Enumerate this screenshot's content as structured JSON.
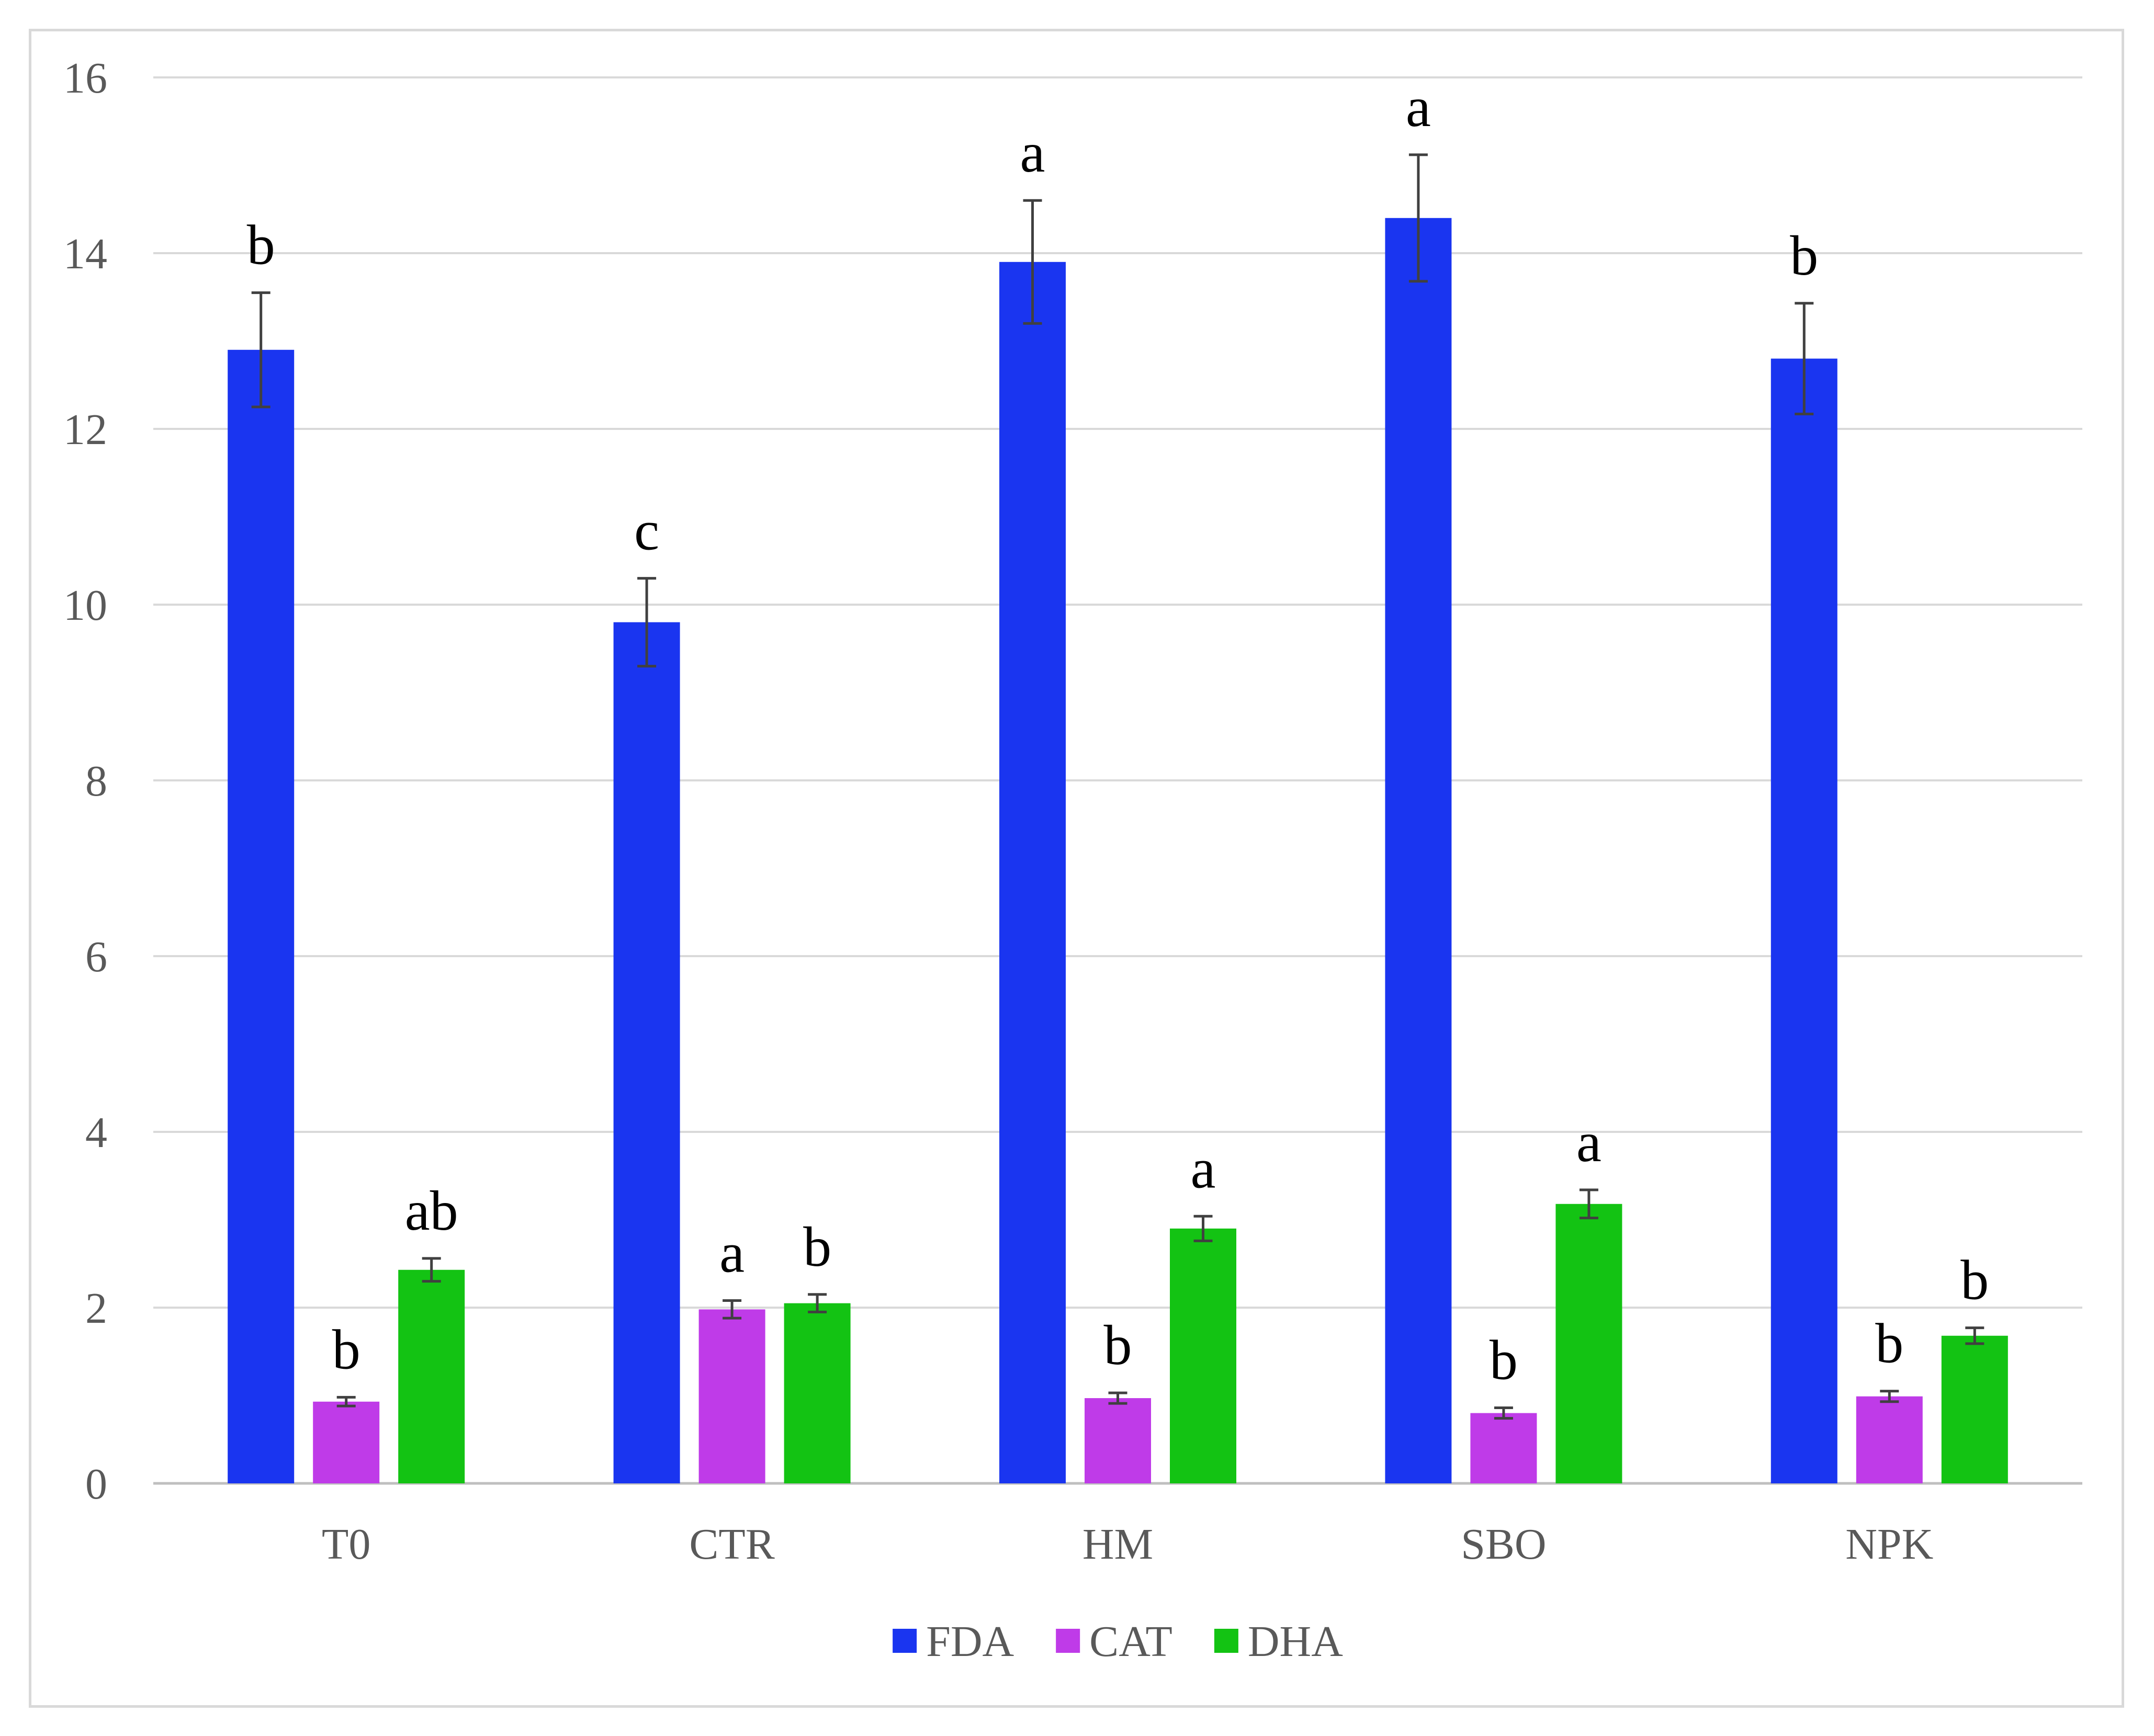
{
  "chart_data": {
    "type": "bar",
    "title": "",
    "xlabel": "",
    "ylabel": "",
    "ylim": [
      0,
      16
    ],
    "yticks": [
      0,
      2,
      4,
      6,
      8,
      10,
      12,
      14,
      16
    ],
    "grid": true,
    "legend_position": "bottom-center",
    "categories": [
      "T0",
      "CTR",
      "HM",
      "SBO",
      "NPK"
    ],
    "series": [
      {
        "name": "FDA",
        "color": "#1a35f0",
        "values": [
          12.9,
          9.8,
          13.9,
          14.4,
          12.8
        ],
        "errors": [
          0.65,
          0.5,
          0.7,
          0.72,
          0.63
        ],
        "letters": [
          "b",
          "c",
          "a",
          "a",
          "b"
        ]
      },
      {
        "name": "CAT",
        "color": "#bf3be8",
        "values": [
          0.93,
          1.98,
          0.97,
          0.8,
          0.99
        ],
        "errors": [
          0.05,
          0.1,
          0.06,
          0.06,
          0.06
        ],
        "letters": [
          "b",
          "a",
          "b",
          "b",
          "b"
        ]
      },
      {
        "name": "DHA",
        "color": "#13c313",
        "values": [
          2.43,
          2.05,
          2.9,
          3.18,
          1.68
        ],
        "errors": [
          0.13,
          0.1,
          0.14,
          0.16,
          0.09
        ],
        "letters": [
          "ab",
          "b",
          "a",
          "a",
          "b"
        ]
      }
    ]
  }
}
